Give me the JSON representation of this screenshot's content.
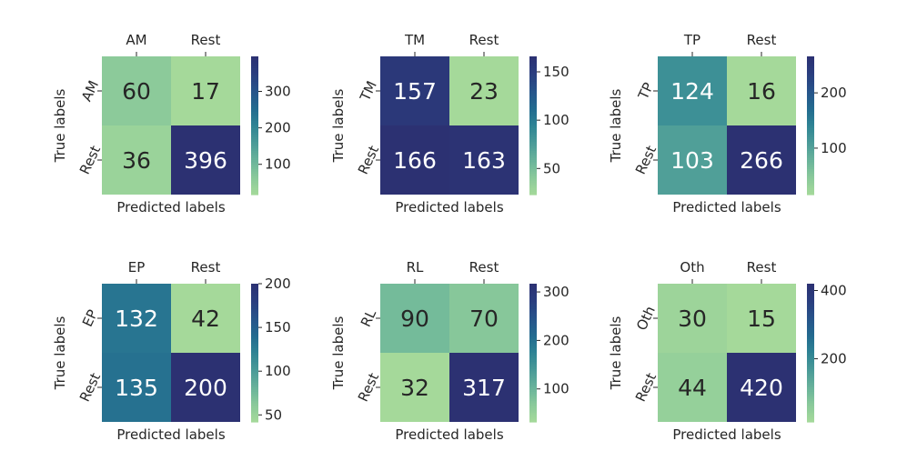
{
  "chart_data": [
    {
      "type": "heatmap",
      "xlabel": "Predicted labels",
      "ylabel": "True labels",
      "x_tick_labels": [
        "AM",
        "Rest"
      ],
      "y_tick_labels": [
        "AM",
        "Rest"
      ],
      "matrix": [
        [
          60,
          17
        ],
        [
          36,
          396
        ]
      ],
      "colorbar": {
        "min": 17,
        "max": 396,
        "ticks": [
          100,
          200,
          300
        ]
      }
    },
    {
      "type": "heatmap",
      "xlabel": "Predicted labels",
      "ylabel": "True labels",
      "x_tick_labels": [
        "TM",
        "Rest"
      ],
      "y_tick_labels": [
        "TM",
        "Rest"
      ],
      "matrix": [
        [
          157,
          23
        ],
        [
          166,
          163
        ]
      ],
      "colorbar": {
        "min": 23,
        "max": 166,
        "ticks": [
          50,
          100,
          150
        ]
      }
    },
    {
      "type": "heatmap",
      "xlabel": "Predicted labels",
      "ylabel": "True labels",
      "x_tick_labels": [
        "TP",
        "Rest"
      ],
      "y_tick_labels": [
        "TP",
        "Rest"
      ],
      "matrix": [
        [
          124,
          16
        ],
        [
          103,
          266
        ]
      ],
      "colorbar": {
        "min": 16,
        "max": 266,
        "ticks": [
          100,
          200
        ]
      }
    },
    {
      "type": "heatmap",
      "xlabel": "Predicted labels",
      "ylabel": "True labels",
      "x_tick_labels": [
        "EP",
        "Rest"
      ],
      "y_tick_labels": [
        "EP",
        "Rest"
      ],
      "matrix": [
        [
          132,
          42
        ],
        [
          135,
          200
        ]
      ],
      "colorbar": {
        "min": 42,
        "max": 200,
        "ticks": [
          50,
          100,
          150,
          200
        ]
      }
    },
    {
      "type": "heatmap",
      "xlabel": "Predicted labels",
      "ylabel": "True labels",
      "x_tick_labels": [
        "RL",
        "Rest"
      ],
      "y_tick_labels": [
        "RL",
        "Rest"
      ],
      "matrix": [
        [
          90,
          70
        ],
        [
          32,
          317
        ]
      ],
      "colorbar": {
        "min": 32,
        "max": 317,
        "ticks": [
          100,
          200,
          300
        ]
      }
    },
    {
      "type": "heatmap",
      "xlabel": "Predicted labels",
      "ylabel": "True labels",
      "x_tick_labels": [
        "Oth",
        "Rest"
      ],
      "y_tick_labels": [
        "Oth",
        "Rest"
      ],
      "matrix": [
        [
          30,
          15
        ],
        [
          44,
          420
        ]
      ],
      "colorbar": {
        "min": 15,
        "max": 420,
        "ticks": [
          200,
          400
        ]
      }
    }
  ],
  "colormap": {
    "name": "crest",
    "stops": [
      "#a5d99a",
      "#89c99a",
      "#68b29a",
      "#4a9a98",
      "#2e8394",
      "#236a8f",
      "#27538a",
      "#2a3e7f",
      "#2c3172"
    ]
  }
}
